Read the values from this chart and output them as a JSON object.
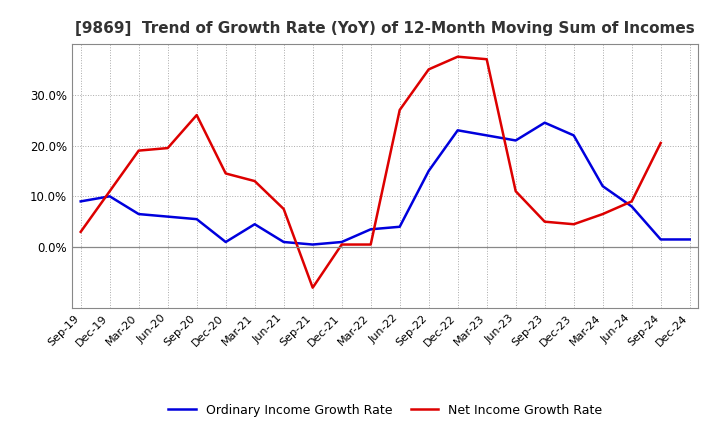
{
  "title": "[9869]  Trend of Growth Rate (YoY) of 12-Month Moving Sum of Incomes",
  "x_labels": [
    "Sep-19",
    "Dec-19",
    "Mar-20",
    "Jun-20",
    "Sep-20",
    "Dec-20",
    "Mar-21",
    "Jun-21",
    "Sep-21",
    "Dec-21",
    "Mar-22",
    "Jun-22",
    "Sep-22",
    "Dec-22",
    "Mar-23",
    "Jun-23",
    "Sep-23",
    "Dec-23",
    "Mar-24",
    "Jun-24",
    "Sep-24",
    "Dec-24"
  ],
  "ordinary_income": [
    9.0,
    10.0,
    6.5,
    6.0,
    5.5,
    1.0,
    4.5,
    1.0,
    0.5,
    1.0,
    3.5,
    4.0,
    15.0,
    23.0,
    22.0,
    21.0,
    24.5,
    22.0,
    12.0,
    8.0,
    1.5,
    1.5
  ],
  "net_income": [
    3.0,
    11.0,
    19.0,
    19.5,
    26.0,
    14.5,
    13.0,
    7.5,
    -8.0,
    0.5,
    0.5,
    27.0,
    35.0,
    37.5,
    37.0,
    11.0,
    5.0,
    4.5,
    6.5,
    9.0,
    20.5,
    null
  ],
  "ordinary_color": "#0000dd",
  "net_color": "#dd0000",
  "background_color": "#ffffff",
  "plot_bg_color": "#ffffff",
  "grid_color": "#aaaaaa",
  "legend_ordinary": "Ordinary Income Growth Rate",
  "legend_net": "Net Income Growth Rate",
  "ylim_min": -12,
  "ylim_max": 40,
  "yticks": [
    0.0,
    10.0,
    20.0,
    30.0
  ]
}
